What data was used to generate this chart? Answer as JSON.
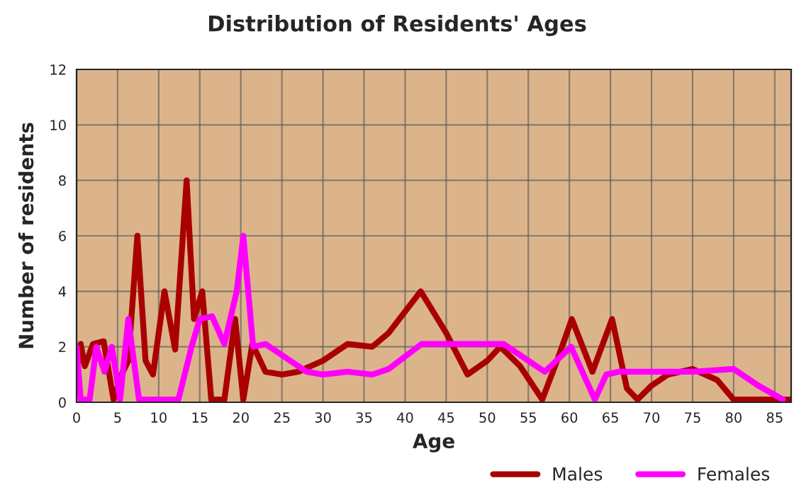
{
  "chart_data": {
    "type": "line",
    "title": "Distribution of Residents' Ages",
    "xlabel": "Age",
    "ylabel": "Number of residents",
    "xlim": [
      0,
      87
    ],
    "xticks": [
      0,
      5,
      10,
      15,
      20,
      25,
      30,
      35,
      40,
      45,
      50,
      55,
      60,
      65,
      70,
      75,
      80,
      85
    ],
    "ylim": [
      0,
      12
    ],
    "yticks": [
      0,
      2,
      4,
      6,
      8,
      10,
      12
    ],
    "grid": true,
    "legend": "bottom right",
    "line_style": "solid",
    "marker": "none",
    "series": [
      {
        "name": "Males",
        "color": "#aa0000",
        "x": [
          0,
          0.5,
          1,
          2,
          3.3,
          4.5,
          5.5,
          6.3,
          7.4,
          8.4,
          9.3,
          10.7,
          12,
          13.4,
          14.3,
          15.3,
          16.4,
          18,
          19.3,
          20.3,
          21.4,
          23,
          25,
          27,
          30,
          33,
          36,
          38,
          41.9,
          45,
          47.6,
          50,
          51.6,
          54,
          56.7,
          58.5,
          60.3,
          62.8,
          65.2,
          67,
          68.3,
          70,
          72,
          75,
          78,
          80,
          85,
          87
        ],
        "values": [
          1,
          2.1,
          1.3,
          2.1,
          2.2,
          0.1,
          1,
          1.5,
          6,
          1.5,
          1,
          4,
          1.9,
          8,
          3,
          4,
          0.1,
          0.1,
          3,
          0.1,
          2.1,
          1.1,
          1,
          1.1,
          1.5,
          2.1,
          2,
          2.5,
          4,
          2.5,
          1,
          1.5,
          2,
          1.3,
          0.1,
          1.5,
          3,
          1.1,
          3,
          0.5,
          0.1,
          0.6,
          1,
          1.2,
          0.8,
          0.1,
          0.1,
          0.1
        ]
      },
      {
        "name": "Females",
        "color": "#ff00ff",
        "x": [
          0,
          0.5,
          1.6,
          2.4,
          3.4,
          4.3,
          5.3,
          6.3,
          7.6,
          9,
          12.4,
          14,
          15,
          16.5,
          18,
          19.5,
          20.3,
          21.5,
          23,
          25,
          28,
          30,
          33,
          36,
          38,
          42,
          46,
          52,
          55,
          57,
          60.2,
          63.1,
          64.5,
          66,
          75,
          80,
          83,
          86
        ],
        "values": [
          2,
          0.1,
          0.1,
          2,
          1.1,
          2,
          0.1,
          3,
          0.1,
          0.1,
          0.1,
          2,
          3,
          3.1,
          2.1,
          4,
          6,
          2,
          2.1,
          1.7,
          1.1,
          1,
          1.1,
          1,
          1.2,
          2.1,
          2.1,
          2.1,
          1.5,
          1.1,
          2,
          0.1,
          1,
          1.1,
          1.1,
          1.2,
          0.6,
          0.1
        ]
      }
    ]
  }
}
